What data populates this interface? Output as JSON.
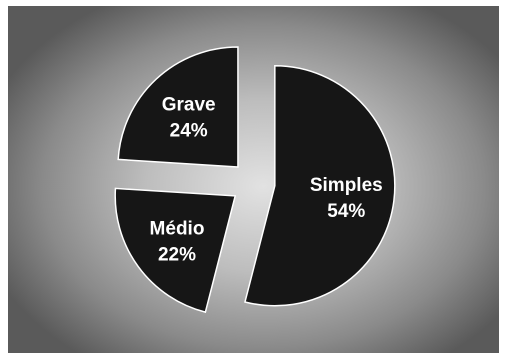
{
  "chart_data": {
    "type": "pie",
    "exploded": true,
    "start_angle_deg": 0,
    "direction": "clockwise",
    "slices": [
      {
        "label": "Simples",
        "value": 54,
        "percent_label": "54%"
      },
      {
        "label": "Médio",
        "value": 22,
        "percent_label": "22%"
      },
      {
        "label": "Grave",
        "value": 24,
        "percent_label": "24%"
      }
    ],
    "colors": {
      "slice_fill": "#161616",
      "slice_stroke": "#ffffff",
      "label_text": "#ffffff"
    }
  }
}
